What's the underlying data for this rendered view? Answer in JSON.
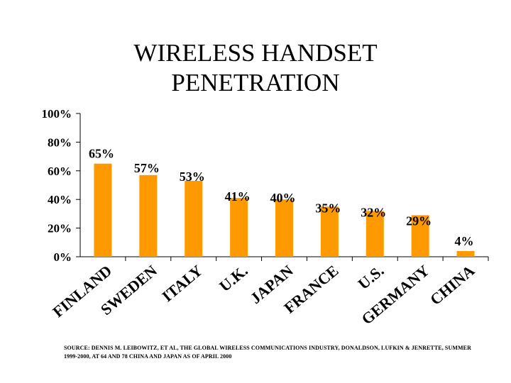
{
  "title_lines": [
    "WIRELESS HANDSET",
    "PENETRATION"
  ],
  "chart_data": {
    "type": "bar",
    "title": "WIRELESS HANDSET PENETRATION",
    "xlabel": "",
    "ylabel": "",
    "ylim": [
      0,
      100
    ],
    "yticks": [
      0,
      20,
      40,
      60,
      80,
      100
    ],
    "ytick_labels": [
      "0%",
      "20%",
      "40%",
      "60%",
      "80%",
      "100%"
    ],
    "categories": [
      "FINLAND",
      "SWEDEN",
      "ITALY",
      "U.K.",
      "JAPAN",
      "FRANCE",
      "U.S.",
      "GERMANY",
      "CHINA"
    ],
    "values": [
      65,
      57,
      53,
      41,
      40,
      35,
      32,
      29,
      4
    ],
    "value_labels": [
      "65%",
      "57%",
      "53%",
      "41%",
      "40%",
      "35%",
      "32%",
      "29%",
      "4%"
    ],
    "grid": false,
    "legend": "none",
    "bar_color": "#FF9900"
  },
  "source_note": "SOURCE: DENNIS M. LEIBOWITZ, ET AL, THE GLOBAL WIRELESS COMMUNICATIONS INDUSTRY, DONALDSON, LUFKIN & JENRETTE, SUMMER 1999-2000, AT 64 AND 78 CHINA AND JAPAN AS OF APRIL 2000"
}
